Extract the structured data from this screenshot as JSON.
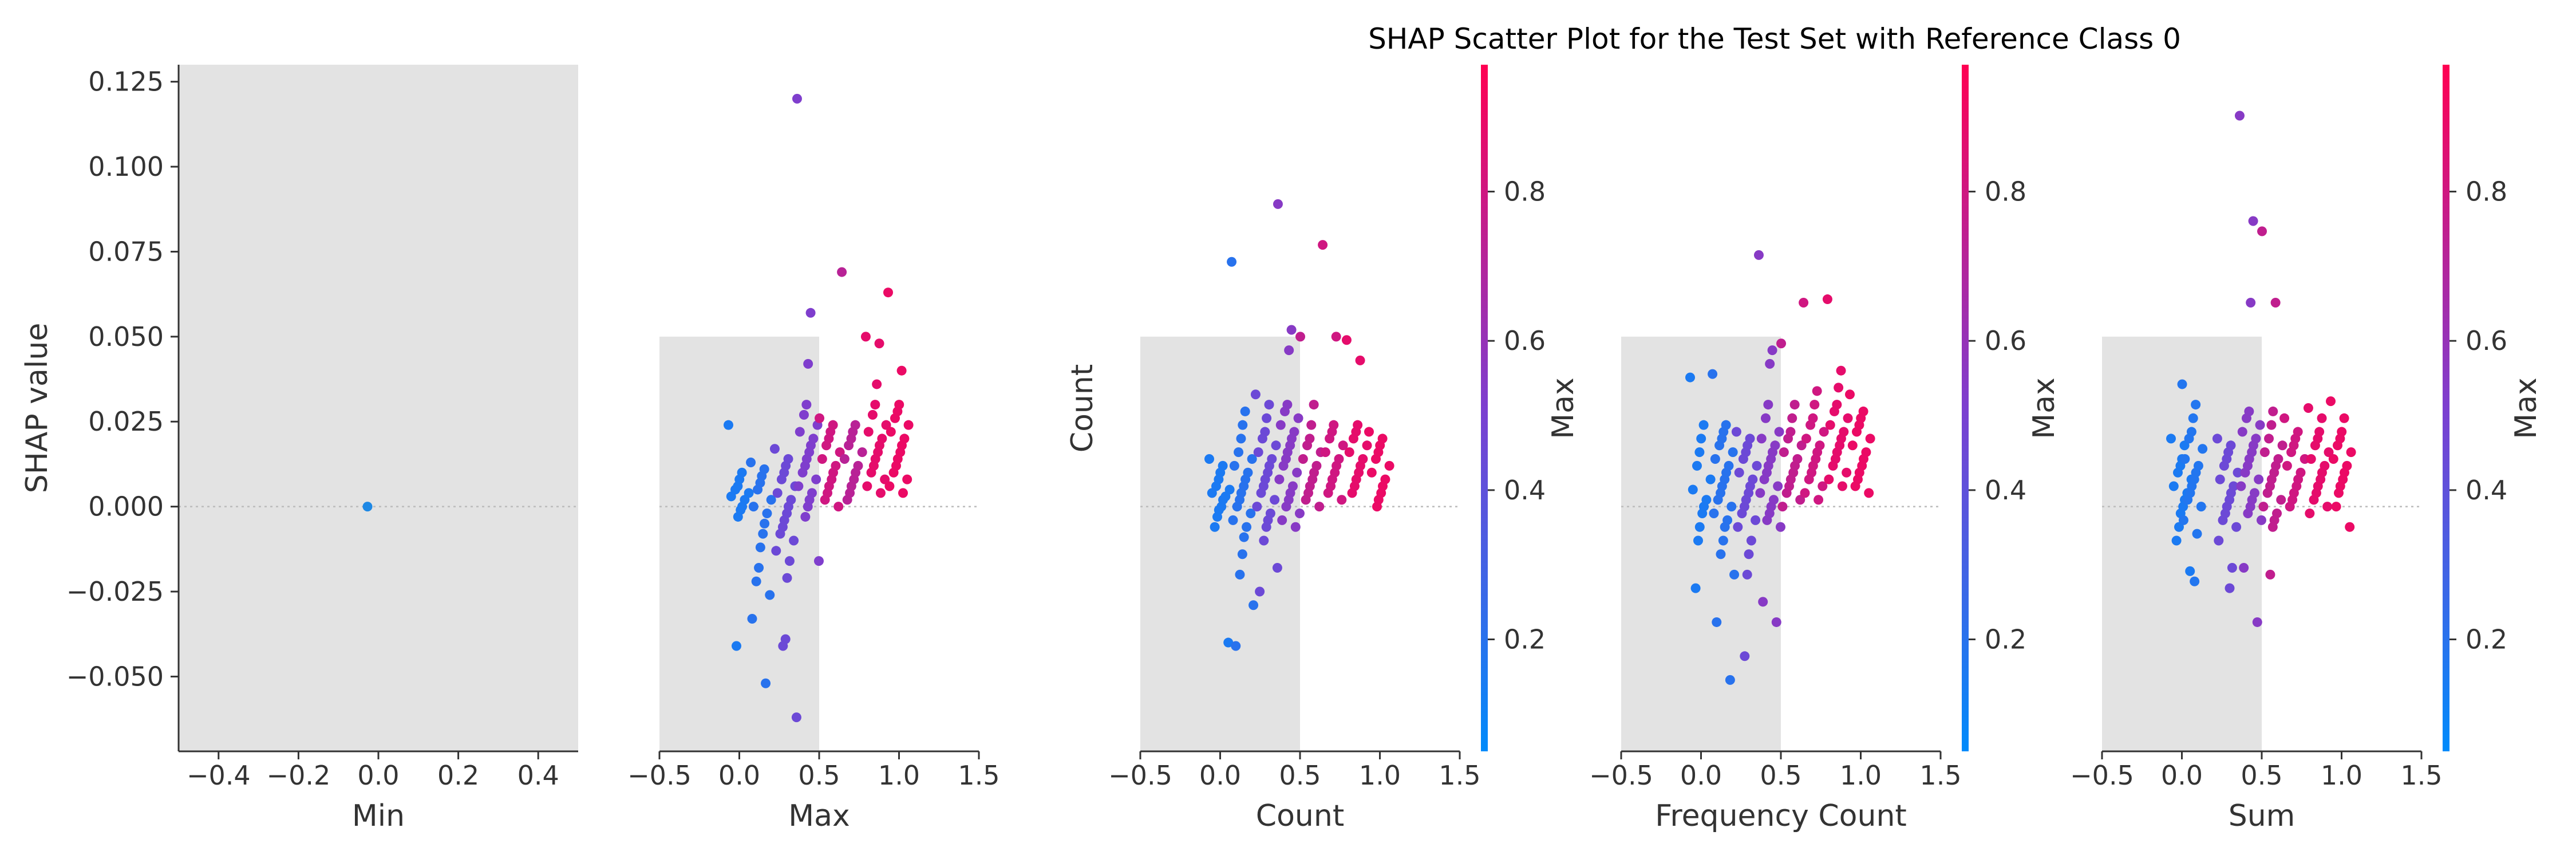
{
  "chart_data": {
    "type": "scatter",
    "title": "SHAP Scatter Plot for the Test Set with Reference Class 0",
    "ylabel": "SHAP value",
    "ylim": [
      -0.072,
      0.13
    ],
    "yticks": [
      "0.125",
      "0.100",
      "0.075",
      "0.050",
      "0.025",
      "0.000",
      "−0.025",
      "−0.050"
    ],
    "ytick_values": [
      0.125,
      0.1,
      0.075,
      0.05,
      0.025,
      0.0,
      -0.025,
      -0.05
    ],
    "colorbar_ticks": [
      "0.2",
      "0.4",
      "0.6",
      "0.8"
    ],
    "colorbar_tick_values": [
      0.2,
      0.4,
      0.6,
      0.8
    ],
    "colorbar_range": [
      0.05,
      0.97
    ],
    "colorbar_colors": [
      "#008bfb",
      "#7c3fd0",
      "#ff0052"
    ],
    "point_color_default": "#1e88e5",
    "panels": [
      {
        "xlabel": "Min",
        "xlim": [
          -0.5,
          0.5
        ],
        "xticks": [
          "−0.4",
          "−0.2",
          "0.0",
          "0.2",
          "0.4"
        ],
        "xtick_values": [
          -0.4,
          -0.2,
          0.0,
          0.2,
          0.4
        ],
        "colorbar_label": "",
        "histogram": [
          {
            "x0": -0.5,
            "x1": 0.5,
            "top": 0.13
          }
        ],
        "clusters": [
          {
            "x": 0.0,
            "color": 0.2,
            "y": [
              0.0
            ]
          }
        ]
      },
      {
        "xlabel": "Max",
        "xlim": [
          -0.5,
          1.5
        ],
        "xticks": [
          "−0.5",
          "0.0",
          "0.5",
          "1.0",
          "1.5"
        ],
        "xtick_values": [
          -0.5,
          0.0,
          0.5,
          1.0,
          1.5
        ],
        "colorbar_label": "Count",
        "histogram": [
          {
            "x0": -0.5,
            "x1": 0.5,
            "top": 0.05
          }
        ],
        "clusters": [
          {
            "x": 0.0,
            "color": 0.15,
            "y": [
              0.024,
              0.01,
              0.008,
              0.006,
              0.005,
              0.004,
              0.003,
              0.002,
              0.0,
              -0.001,
              -0.003,
              -0.041
            ]
          },
          {
            "x": 0.14,
            "color": 0.2,
            "y": [
              0.013,
              0.011,
              0.009,
              0.007,
              0.005,
              0.002,
              0.0,
              -0.002,
              -0.005,
              -0.008,
              -0.012,
              -0.018,
              -0.022,
              -0.026,
              -0.033,
              -0.052
            ]
          },
          {
            "x": 0.29,
            "color": 0.45,
            "y": [
              0.017,
              0.014,
              0.012,
              0.01,
              0.008,
              0.006,
              0.004,
              0.002,
              0.0,
              -0.002,
              -0.004,
              -0.006,
              -0.008,
              -0.01,
              -0.013,
              -0.016,
              -0.021,
              -0.039,
              -0.041,
              -0.062
            ]
          },
          {
            "x": 0.43,
            "color": 0.52,
            "y": [
              0.12,
              0.057,
              0.042,
              0.03,
              0.027,
              0.024,
              0.022,
              0.02,
              0.018,
              0.016,
              0.014,
              0.012,
              0.01,
              0.008,
              0.006,
              0.004,
              0.002,
              0.0,
              -0.003,
              -0.016
            ]
          },
          {
            "x": 0.57,
            "color": 0.8,
            "y": [
              0.026,
              0.024,
              0.022,
              0.02,
              0.018,
              0.016,
              0.014,
              0.012,
              0.01,
              0.008,
              0.006,
              0.004,
              0.002,
              0.0
            ]
          },
          {
            "x": 0.71,
            "color": 0.72,
            "y": [
              0.069,
              0.024,
              0.022,
              0.02,
              0.018,
              0.016,
              0.014,
              0.012,
              0.01,
              0.008,
              0.006,
              0.004,
              0.002
            ]
          },
          {
            "x": 0.86,
            "color": 0.88,
            "y": [
              0.05,
              0.048,
              0.036,
              0.03,
              0.027,
              0.024,
              0.022,
              0.02,
              0.018,
              0.016,
              0.014,
              0.012,
              0.01,
              0.008,
              0.006,
              0.004
            ]
          },
          {
            "x": 1.0,
            "color": 0.9,
            "y": [
              0.063,
              0.04,
              0.03,
              0.028,
              0.026,
              0.024,
              0.022,
              0.02,
              0.018,
              0.016,
              0.014,
              0.012,
              0.01,
              0.008,
              0.006,
              0.004
            ]
          }
        ]
      },
      {
        "xlabel": "Count",
        "xlim": [
          -0.5,
          1.5
        ],
        "xticks": [
          "−0.5",
          "0.0",
          "0.5",
          "1.0",
          "1.5"
        ],
        "xtick_values": [
          -0.5,
          0.0,
          0.5,
          1.0,
          1.5
        ],
        "colorbar_label": "Max",
        "histogram": [
          {
            "x0": -0.5,
            "x1": 0.5,
            "top": 0.05
          }
        ],
        "clusters": [
          {
            "x": 0.0,
            "color": 0.15,
            "y": [
              0.014,
              0.012,
              0.01,
              0.008,
              0.006,
              0.005,
              0.004,
              0.003,
              0.002,
              0.0,
              -0.001,
              -0.003,
              -0.006,
              -0.04
            ]
          },
          {
            "x": 0.14,
            "color": 0.2,
            "y": [
              0.072,
              0.028,
              0.024,
              0.02,
              0.016,
              0.014,
              0.012,
              0.01,
              0.008,
              0.006,
              0.004,
              0.002,
              0.0,
              -0.002,
              -0.004,
              -0.006,
              -0.009,
              -0.014,
              -0.02,
              -0.029,
              -0.041
            ]
          },
          {
            "x": 0.29,
            "color": 0.45,
            "y": [
              0.033,
              0.03,
              0.026,
              0.022,
              0.02,
              0.018,
              0.016,
              0.014,
              0.012,
              0.01,
              0.008,
              0.006,
              0.004,
              0.002,
              0.0,
              -0.002,
              -0.004,
              -0.006,
              -0.01,
              -0.018,
              -0.025
            ]
          },
          {
            "x": 0.43,
            "color": 0.55,
            "y": [
              0.089,
              0.052,
              0.046,
              0.03,
              0.028,
              0.026,
              0.024,
              0.022,
              0.02,
              0.018,
              0.016,
              0.014,
              0.012,
              0.01,
              0.008,
              0.006,
              0.004,
              0.002,
              0.0,
              -0.002,
              -0.004,
              -0.006
            ]
          },
          {
            "x": 0.57,
            "color": 0.75,
            "y": [
              0.05,
              0.03,
              0.024,
              0.02,
              0.018,
              0.016,
              0.014,
              0.012,
              0.01,
              0.008,
              0.006,
              0.004,
              0.002,
              0.0
            ]
          },
          {
            "x": 0.71,
            "color": 0.8,
            "y": [
              0.077,
              0.05,
              0.024,
              0.022,
              0.02,
              0.018,
              0.016,
              0.014,
              0.012,
              0.01,
              0.008,
              0.006,
              0.004,
              0.002
            ]
          },
          {
            "x": 0.86,
            "color": 0.88,
            "y": [
              0.049,
              0.043,
              0.024,
              0.022,
              0.02,
              0.018,
              0.016,
              0.014,
              0.012,
              0.01,
              0.008,
              0.006,
              0.004
            ]
          },
          {
            "x": 1.0,
            "color": 0.9,
            "y": [
              0.022,
              0.02,
              0.018,
              0.016,
              0.014,
              0.012,
              0.01,
              0.008,
              0.006,
              0.004,
              0.002,
              0.0
            ]
          }
        ]
      },
      {
        "xlabel": "Frequency Count",
        "xlim": [
          -0.5,
          1.5
        ],
        "xticks": [
          "−0.5",
          "0.0",
          "0.5",
          "1.0",
          "1.5"
        ],
        "xtick_values": [
          -0.5,
          0.0,
          0.5,
          1.0,
          1.5
        ],
        "colorbar_label": "Max",
        "histogram": [
          {
            "x0": -0.5,
            "x1": 0.5,
            "top": 0.05
          }
        ],
        "clusters": [
          {
            "x": 0.0,
            "color": 0.15,
            "y": [
              0.038,
              0.024,
              0.02,
              0.016,
              0.012,
              0.008,
              0.005,
              0.002,
              0.0,
              -0.002,
              -0.006,
              -0.01,
              -0.024
            ]
          },
          {
            "x": 0.14,
            "color": 0.2,
            "y": [
              0.039,
              0.024,
              0.022,
              0.02,
              0.018,
              0.016,
              0.014,
              0.012,
              0.01,
              0.008,
              0.006,
              0.004,
              0.002,
              0.0,
              -0.002,
              -0.004,
              -0.006,
              -0.01,
              -0.014,
              -0.02,
              -0.034,
              -0.051
            ]
          },
          {
            "x": 0.29,
            "color": 0.45,
            "y": [
              0.022,
              0.02,
              0.018,
              0.016,
              0.014,
              0.012,
              0.01,
              0.008,
              0.006,
              0.004,
              0.002,
              0.0,
              -0.002,
              -0.004,
              -0.006,
              -0.01,
              -0.014,
              -0.02,
              -0.044
            ]
          },
          {
            "x": 0.43,
            "color": 0.55,
            "y": [
              0.074,
              0.046,
              0.042,
              0.03,
              0.026,
              0.022,
              0.02,
              0.018,
              0.016,
              0.014,
              0.012,
              0.01,
              0.008,
              0.006,
              0.004,
              0.002,
              0.0,
              -0.002,
              -0.004,
              -0.006,
              -0.028,
              -0.034
            ]
          },
          {
            "x": 0.57,
            "color": 0.75,
            "y": [
              0.048,
              0.03,
              0.026,
              0.022,
              0.02,
              0.018,
              0.016,
              0.014,
              0.012,
              0.01,
              0.008,
              0.006,
              0.004,
              0.002,
              0.0
            ]
          },
          {
            "x": 0.71,
            "color": 0.8,
            "y": [
              0.06,
              0.034,
              0.03,
              0.026,
              0.024,
              0.022,
              0.02,
              0.018,
              0.016,
              0.014,
              0.012,
              0.01,
              0.008,
              0.006,
              0.004,
              0.002
            ]
          },
          {
            "x": 0.86,
            "color": 0.88,
            "y": [
              0.061,
              0.04,
              0.035,
              0.03,
              0.028,
              0.026,
              0.024,
              0.022,
              0.02,
              0.018,
              0.016,
              0.014,
              0.012,
              0.01,
              0.008,
              0.006
            ]
          },
          {
            "x": 1.0,
            "color": 0.9,
            "y": [
              0.033,
              0.028,
              0.026,
              0.024,
              0.022,
              0.02,
              0.018,
              0.016,
              0.014,
              0.012,
              0.01,
              0.008,
              0.006,
              0.004
            ]
          }
        ]
      },
      {
        "xlabel": "Sum",
        "xlim": [
          -0.5,
          1.5
        ],
        "xticks": [
          "−0.5",
          "0.0",
          "0.5",
          "1.0",
          "1.5"
        ],
        "xtick_values": [
          -0.5,
          0.0,
          0.5,
          1.0,
          1.5
        ],
        "colorbar_label": "Max",
        "histogram": [
          {
            "x0": -0.5,
            "x1": 0.5,
            "top": 0.05
          }
        ],
        "clusters": [
          {
            "x": 0.0,
            "color": 0.15,
            "y": [
              0.02,
              0.018,
              0.014,
              0.012,
              0.01,
              0.008,
              0.006,
              0.004,
              0.002,
              0.0,
              -0.002,
              -0.006,
              -0.01,
              -0.019
            ]
          },
          {
            "x": 0.07,
            "color": 0.18,
            "y": [
              0.036,
              0.03,
              0.026,
              0.022,
              0.02,
              0.017,
              0.014,
              0.012,
              0.01,
              0.008,
              0.006,
              0.004,
              0.002,
              0.0,
              -0.004,
              -0.008,
              -0.022
            ]
          },
          {
            "x": 0.29,
            "color": 0.45,
            "y": [
              0.02,
              0.018,
              0.016,
              0.014,
              0.012,
              0.01,
              0.008,
              0.006,
              0.004,
              0.002,
              0.0,
              -0.002,
              -0.004,
              -0.006,
              -0.01,
              -0.018,
              -0.024
            ]
          },
          {
            "x": 0.43,
            "color": 0.55,
            "y": [
              0.115,
              0.084,
              0.06,
              0.028,
              0.026,
              0.024,
              0.022,
              0.02,
              0.018,
              0.016,
              0.014,
              0.012,
              0.01,
              0.008,
              0.006,
              0.004,
              0.002,
              0.0,
              -0.002,
              -0.004,
              -0.018,
              -0.034
            ]
          },
          {
            "x": 0.57,
            "color": 0.75,
            "y": [
              0.081,
              0.06,
              0.028,
              0.024,
              0.02,
              0.018,
              0.016,
              0.014,
              0.012,
              0.01,
              0.008,
              0.006,
              0.004,
              0.002,
              0.0,
              -0.002,
              -0.004,
              -0.006,
              -0.02
            ]
          },
          {
            "x": 0.71,
            "color": 0.8,
            "y": [
              0.026,
              0.022,
              0.02,
              0.018,
              0.016,
              0.014,
              0.012,
              0.01,
              0.008,
              0.006,
              0.004,
              0.002,
              0.0
            ]
          },
          {
            "x": 0.86,
            "color": 0.88,
            "y": [
              0.029,
              0.026,
              0.022,
              0.02,
              0.018,
              0.016,
              0.014,
              0.012,
              0.01,
              0.008,
              0.006,
              0.004,
              0.002,
              0.0,
              -0.002
            ]
          },
          {
            "x": 1.0,
            "color": 0.9,
            "y": [
              0.031,
              0.026,
              0.022,
              0.02,
              0.018,
              0.016,
              0.014,
              0.012,
              0.01,
              0.008,
              0.006,
              0.004,
              0.0,
              -0.006
            ]
          }
        ]
      }
    ]
  }
}
